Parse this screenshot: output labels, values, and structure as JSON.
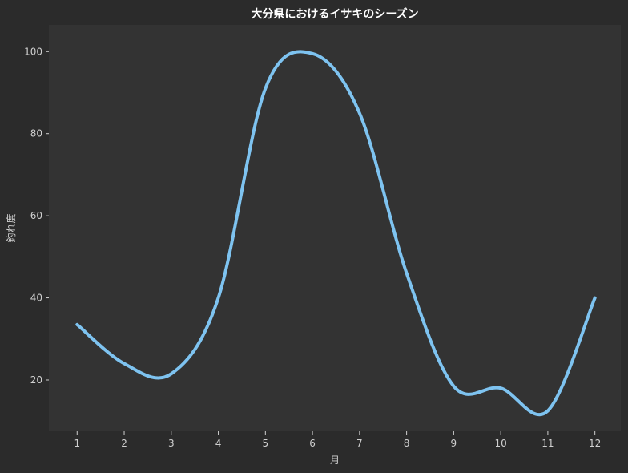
{
  "chart_data": {
    "type": "line",
    "title": "大分県におけるイサキのシーズン",
    "xlabel": "月",
    "ylabel": "釣れ度",
    "x": [
      1,
      2,
      3,
      4,
      5,
      6,
      7,
      8,
      9,
      10,
      11,
      12
    ],
    "x_tick_labels": [
      "1",
      "2",
      "3",
      "4",
      "5",
      "6",
      "7",
      "8",
      "9",
      "10",
      "11",
      "12"
    ],
    "series": [
      {
        "values": [
          33.5,
          24,
          21.5,
          40,
          91,
          99.5,
          85,
          46,
          18.5,
          18,
          12.5,
          40
        ]
      }
    ],
    "y_ticks": [
      20,
      40,
      60,
      80,
      100
    ],
    "y_tick_labels": [
      "20",
      "40",
      "60",
      "80",
      "100"
    ],
    "xlim": [
      0.4,
      12.55
    ],
    "ylim": [
      7.5,
      106.5
    ],
    "grid": false,
    "legend": "none",
    "smooth": true
  },
  "colors": {
    "figure_background": "#2b2b2b",
    "plot_background": "#333333",
    "line": "#7ec3f0",
    "text": "#d0d0d0",
    "title": "#ffffff"
  }
}
